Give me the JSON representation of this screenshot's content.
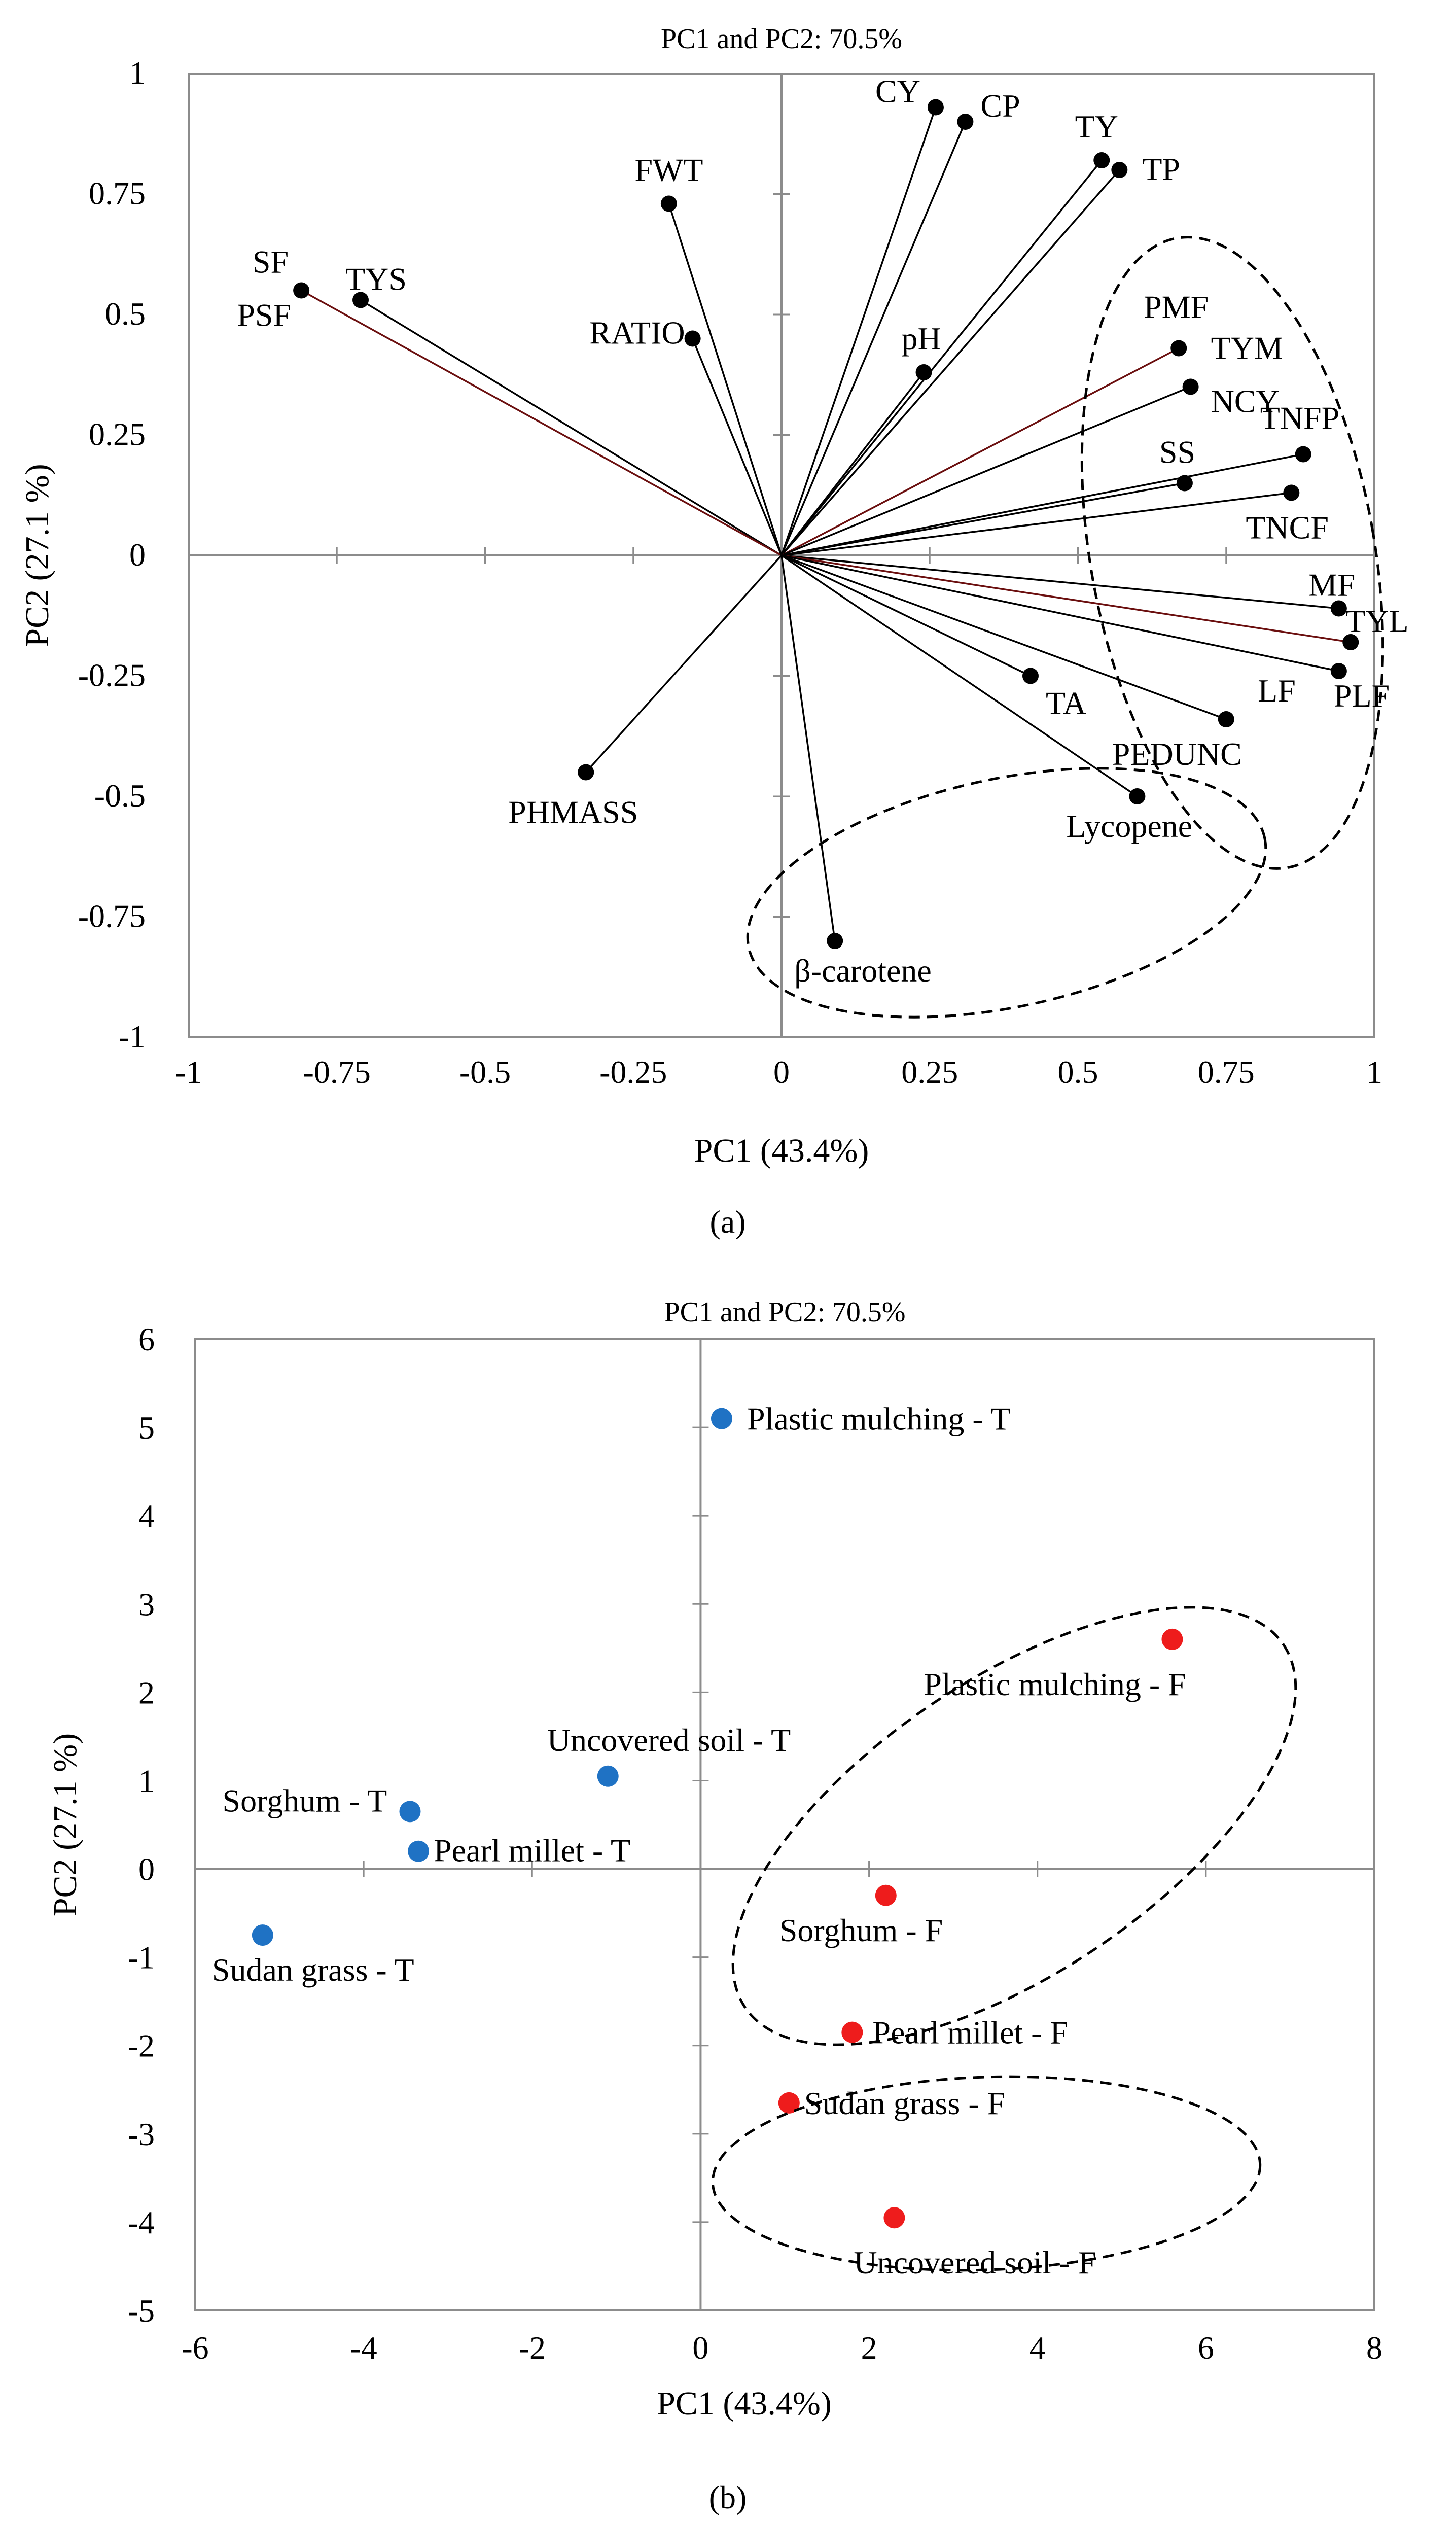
{
  "chart_data": [
    {
      "type": "scatter",
      "subtype": "pca-loading-plot",
      "panel": "(a)",
      "title": "PC1 and PC2: 70.5%",
      "xlabel": "PC1 (43.4%)",
      "ylabel": "PC2 (27.1 %)",
      "xlim": [
        -1,
        1
      ],
      "ylim": [
        -1,
        1
      ],
      "xticks": [
        -1,
        -0.75,
        -0.5,
        -0.25,
        0,
        0.25,
        0.5,
        0.75,
        1
      ],
      "yticks": [
        -1,
        -0.75,
        -0.5,
        -0.25,
        0,
        0.25,
        0.5,
        0.75,
        1
      ],
      "xtick_labels": [
        "-1",
        "-0.75",
        "-0.5",
        "-0.25",
        "0",
        "0.25",
        "0.5",
        "0.75",
        "1"
      ],
      "ytick_labels": [
        "-1",
        "-0.75",
        "-0.5",
        "-0.25",
        "0",
        "0.25",
        "0.5",
        "0.75",
        "1"
      ],
      "vectors_from_origin": true,
      "points": [
        {
          "label": "CY",
          "x": 0.26,
          "y": 0.93
        },
        {
          "label": "CP",
          "x": 0.31,
          "y": 0.9
        },
        {
          "label": "TY",
          "x": 0.54,
          "y": 0.82
        },
        {
          "label": "TP",
          "x": 0.57,
          "y": 0.8
        },
        {
          "label": "FWT",
          "x": -0.19,
          "y": 0.73
        },
        {
          "label": "TYS",
          "x": -0.71,
          "y": 0.53
        },
        {
          "label": "SF",
          "x": -0.81,
          "y": 0.55,
          "extra_label": "PSF"
        },
        {
          "label": "RATIO",
          "x": -0.15,
          "y": 0.45
        },
        {
          "label": "pH",
          "x": 0.24,
          "y": 0.38
        },
        {
          "label": "PMF",
          "x": 0.67,
          "y": 0.43
        },
        {
          "label": "TYM",
          "x": 0.69,
          "y": 0.35,
          "text": "NCY"
        },
        {
          "label": "TNFP",
          "x": 0.88,
          "y": 0.21
        },
        {
          "label": "SS",
          "x": 0.68,
          "y": 0.15
        },
        {
          "label": "TNCF",
          "x": 0.86,
          "y": 0.13
        },
        {
          "label": "MF",
          "x": 0.94,
          "y": -0.11
        },
        {
          "label": "TYL",
          "x": 0.96,
          "y": -0.18
        },
        {
          "label": "PLF",
          "x": 0.94,
          "y": -0.24,
          "extra_label": "LF"
        },
        {
          "label": "TA",
          "x": 0.42,
          "y": -0.25
        },
        {
          "label": "PEDUNC",
          "x": 0.75,
          "y": -0.34
        },
        {
          "label": "Lycopene",
          "x": 0.6,
          "y": -0.5
        },
        {
          "label": "PHMASS",
          "x": -0.33,
          "y": -0.45
        },
        {
          "label": "β-carotene",
          "x": 0.09,
          "y": -0.8
        }
      ]
    },
    {
      "type": "scatter",
      "subtype": "pca-score-plot",
      "panel": "(b)",
      "title": "PC1 and PC2: 70.5%",
      "xlabel": "PC1 (43.4%)",
      "ylabel": "PC2 (27.1 %)",
      "xlim": [
        -6,
        8
      ],
      "ylim": [
        -5,
        6
      ],
      "xticks": [
        -6,
        -4,
        -2,
        0,
        2,
        4,
        6,
        8
      ],
      "yticks": [
        -5,
        -4,
        -3,
        -2,
        -1,
        0,
        1,
        2,
        3,
        4,
        5,
        6
      ],
      "xtick_labels": [
        "-6",
        "-4",
        "-2",
        "0",
        "2",
        "4",
        "6",
        "8"
      ],
      "ytick_labels": [
        "-5",
        "-4",
        "-3",
        "-2",
        "-1",
        "0",
        "1",
        "2",
        "3",
        "4",
        "5",
        "6"
      ],
      "series": [
        {
          "name": "T",
          "color": "#1f72c4",
          "points": [
            {
              "label": "Plastic mulching - T",
              "x": 0.25,
              "y": 5.1
            },
            {
              "label": "Uncovered soil - T",
              "x": -1.1,
              "y": 1.05
            },
            {
              "label": "Sorghum - T",
              "x": -3.45,
              "y": 0.65
            },
            {
              "label": "Pearl millet - T",
              "x": -3.35,
              "y": 0.2
            },
            {
              "label": "Sudan grass - T",
              "x": -5.2,
              "y": -0.75
            }
          ]
        },
        {
          "name": "F",
          "color": "#ee1c1c",
          "points": [
            {
              "label": "Plastic mulching - F",
              "x": 5.6,
              "y": 2.6
            },
            {
              "label": "Sorghum - F",
              "x": 2.2,
              "y": -0.3
            },
            {
              "label": "Pearl millet - F",
              "x": 1.8,
              "y": -1.85
            },
            {
              "label": "Sudan grass - F",
              "x": 1.05,
              "y": -2.65
            },
            {
              "label": "Uncovered soil - F",
              "x": 2.3,
              "y": -3.95
            }
          ]
        }
      ]
    }
  ],
  "captions": {
    "a": "(a)",
    "b": "(b)"
  }
}
